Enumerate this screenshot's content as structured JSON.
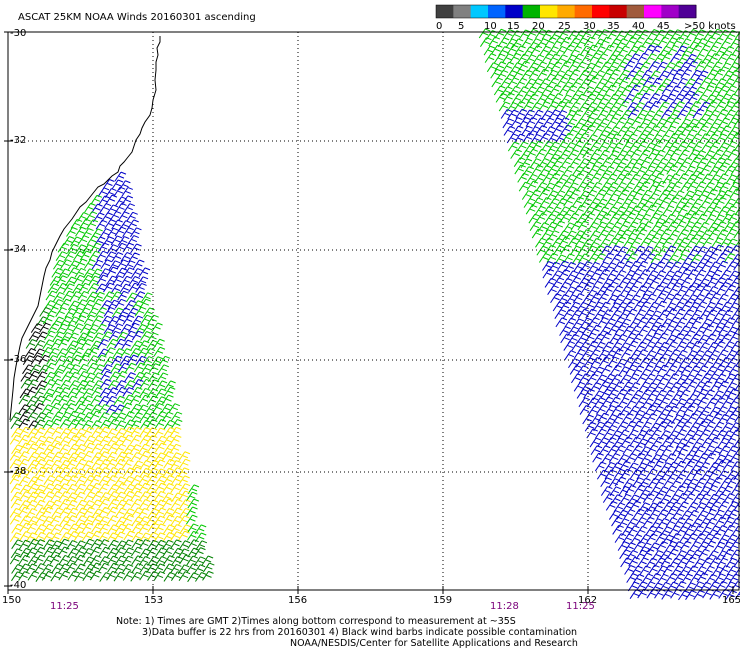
{
  "title": "ASCAT 25KM NOAA Winds 20160301 ascending",
  "legend": {
    "labels": [
      "0",
      "5",
      "10",
      "15",
      "20",
      "25",
      "30",
      "35",
      "40",
      "45",
      ">50 knots"
    ],
    "colors": [
      "#404040",
      "#808080",
      "#00c8ff",
      "#0064ff",
      "#0000c8",
      "#00b400",
      "#ffe600",
      "#ffaa00",
      "#ff6a00",
      "#ff0000",
      "#c80000",
      "#a05a3c",
      "#ff00ff",
      "#a000c8",
      "#500096"
    ]
  },
  "axes": {
    "lon_ticks": [
      "150",
      "153",
      "156",
      "159",
      "162",
      "165"
    ],
    "lat_ticks": [
      "-30",
      "-32",
      "-34",
      "-36",
      "-38",
      "-40"
    ]
  },
  "pass_times": [
    "11:25",
    "11:28",
    "11:25"
  ],
  "notes": [
    "Note: 1) Times are GMT 2)Times along bottom correspond to measurement at ~35S",
    "3)Data buffer is 22 hrs from 20160301 4) Black wind barbs indicate possible contamination",
    "NOAA/NESDIS/Center for Satellite Applications and Research"
  ],
  "wind_colors": {
    "blue": "#0000c8",
    "green": "#00c800",
    "yellow": "#ffe600",
    "dark_green": "#008000",
    "black": "#000000"
  }
}
